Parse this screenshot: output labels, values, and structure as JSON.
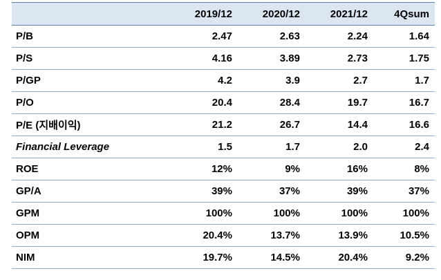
{
  "table": {
    "columns": [
      "",
      "2019/12",
      "2020/12",
      "2021/12",
      "4Qsum"
    ],
    "rows": [
      {
        "label": "P/B",
        "italic": false,
        "values": [
          "2.47",
          "2.63",
          "2.24",
          "1.64"
        ]
      },
      {
        "label": "P/S",
        "italic": false,
        "values": [
          "4.16",
          "3.89",
          "2.73",
          "1.75"
        ]
      },
      {
        "label": "P/GP",
        "italic": false,
        "values": [
          "4.2",
          "3.9",
          "2.7",
          "1.7"
        ]
      },
      {
        "label": "P/O",
        "italic": false,
        "values": [
          "20.4",
          "28.4",
          "19.7",
          "16.7"
        ]
      },
      {
        "label": "P/E (지배이익)",
        "italic": false,
        "values": [
          "21.2",
          "26.7",
          "14.4",
          "16.6"
        ]
      },
      {
        "label": "Financial Leverage",
        "italic": true,
        "values": [
          "1.5",
          "1.7",
          "2.0",
          "2.4"
        ]
      },
      {
        "label": "ROE",
        "italic": false,
        "values": [
          "12%",
          "9%",
          "16%",
          "8%"
        ]
      },
      {
        "label": "GP/A",
        "italic": false,
        "values": [
          "39%",
          "37%",
          "39%",
          "37%"
        ]
      },
      {
        "label": "GPM",
        "italic": false,
        "values": [
          "100%",
          "100%",
          "100%",
          "100%"
        ]
      },
      {
        "label": "OPM",
        "italic": false,
        "values": [
          "20.4%",
          "13.7%",
          "13.9%",
          "10.5%"
        ]
      },
      {
        "label": "NIM",
        "italic": false,
        "values": [
          "19.7%",
          "14.5%",
          "20.4%",
          "9.2%"
        ]
      }
    ]
  }
}
